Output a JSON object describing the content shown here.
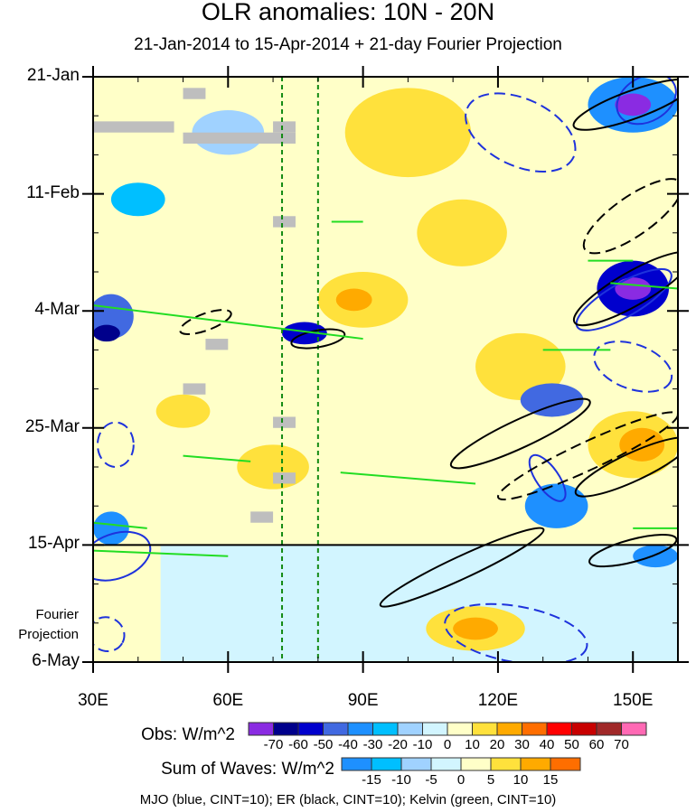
{
  "chart_data": {
    "type": "heatmap",
    "title": "OLR anomalies: 10N - 20N",
    "subtitle": "21-Jan-2014 to 15-Apr-2014 + 21-day Fourier Projection",
    "xlim": [
      30,
      160
    ],
    "ylim_days": [
      0,
      105
    ],
    "x_ticks": [
      {
        "lon": 30,
        "label": "30E"
      },
      {
        "lon": 60,
        "label": "60E"
      },
      {
        "lon": 90,
        "label": "90E"
      },
      {
        "lon": 120,
        "label": "120E"
      },
      {
        "lon": 150,
        "label": "150E"
      }
    ],
    "y_ticks": [
      {
        "day": 0,
        "label": "21-Jan"
      },
      {
        "day": 21,
        "label": "11-Feb"
      },
      {
        "day": 42,
        "label": "4-Mar"
      },
      {
        "day": 63,
        "label": "25-Mar"
      },
      {
        "day": 84,
        "label": "15-Apr"
      },
      {
        "day": 105,
        "label": "6-May"
      }
    ],
    "projection_label": [
      "Fourier",
      "Projection"
    ],
    "observation_end_day": 84,
    "reference_lines_lon": [
      72,
      80
    ],
    "obs_colorbar": {
      "label": "Obs: W/m^2",
      "levels": [
        "-70",
        "-60",
        "-50",
        "-40",
        "-30",
        "-20",
        "-10",
        "0",
        "10",
        "20",
        "30",
        "40",
        "50",
        "60",
        "70"
      ],
      "colors": [
        "#8a2be2",
        "#00008b",
        "#0000cd",
        "#4169e1",
        "#1e90ff",
        "#00bfff",
        "#a0d2ff",
        "#d2f5ff",
        "#ffffc8",
        "#ffe13c",
        "#ffaa00",
        "#ff6e00",
        "#ff0000",
        "#c80000",
        "#a02828",
        "#ff69b4"
      ]
    },
    "wave_colorbar": {
      "label": "Sum of Waves: W/m^2",
      "levels": [
        "-15",
        "-10",
        "-5",
        "0",
        "5",
        "10",
        "15"
      ],
      "colors": [
        "#1e90ff",
        "#00bfff",
        "#a0d2ff",
        "#d2f5ff",
        "#ffffc8",
        "#ffe13c",
        "#ffaa00",
        "#ff6e00"
      ]
    },
    "anomaly_patches": [
      {
        "lon": 100,
        "day": 10,
        "rlon": 14,
        "rday": 8,
        "color": "#ffe13c"
      },
      {
        "lon": 112,
        "day": 28,
        "rlon": 10,
        "rday": 6,
        "color": "#ffe13c"
      },
      {
        "lon": 90,
        "day": 40,
        "rlon": 10,
        "rday": 5,
        "color": "#ffe13c"
      },
      {
        "lon": 88,
        "day": 40,
        "rlon": 4,
        "rday": 2,
        "color": "#ffaa00"
      },
      {
        "lon": 125,
        "day": 52,
        "rlon": 10,
        "rday": 6,
        "color": "#ffe13c"
      },
      {
        "lon": 150,
        "day": 66,
        "rlon": 10,
        "rday": 6,
        "color": "#ffe13c"
      },
      {
        "lon": 152,
        "day": 66,
        "rlon": 5,
        "rday": 3,
        "color": "#ffaa00"
      },
      {
        "lon": 70,
        "day": 70,
        "rlon": 8,
        "rday": 4,
        "color": "#ffe13c"
      },
      {
        "lon": 50,
        "day": 60,
        "rlon": 6,
        "rday": 3,
        "color": "#ffe13c"
      },
      {
        "lon": 115,
        "day": 99,
        "rlon": 11,
        "rday": 4,
        "color": "#ffe13c"
      },
      {
        "lon": 115,
        "day": 99,
        "rlon": 5,
        "rday": 2,
        "color": "#ffaa00"
      },
      {
        "lon": 150,
        "day": 5,
        "rlon": 10,
        "rday": 5,
        "color": "#1e90ff"
      },
      {
        "lon": 150,
        "day": 5,
        "rlon": 4,
        "rday": 2,
        "color": "#8a2be2"
      },
      {
        "lon": 150,
        "day": 38,
        "rlon": 8,
        "rday": 5,
        "color": "#0000cd"
      },
      {
        "lon": 150,
        "day": 38,
        "rlon": 4,
        "rday": 2,
        "color": "#8a2be2"
      },
      {
        "lon": 34,
        "day": 43,
        "rlon": 5,
        "rday": 4,
        "color": "#4169e1"
      },
      {
        "lon": 33,
        "day": 46,
        "rlon": 3,
        "rday": 1.5,
        "color": "#00008b"
      },
      {
        "lon": 77,
        "day": 46,
        "rlon": 5,
        "rday": 2,
        "color": "#0000cd"
      },
      {
        "lon": 132,
        "day": 58,
        "rlon": 7,
        "rday": 3,
        "color": "#4169e1"
      },
      {
        "lon": 133,
        "day": 77,
        "rlon": 7,
        "rday": 4,
        "color": "#1e90ff"
      },
      {
        "lon": 40,
        "day": 22,
        "rlon": 6,
        "rday": 3,
        "color": "#00bfff"
      },
      {
        "lon": 34,
        "day": 81,
        "rlon": 4,
        "rday": 3,
        "color": "#1e90ff"
      },
      {
        "lon": 155,
        "day": 86,
        "rlon": 5,
        "rday": 2,
        "color": "#1e90ff"
      },
      {
        "lon": 60,
        "day": 10,
        "rlon": 8,
        "rday": 4,
        "color": "#a0d2ff"
      }
    ],
    "missing_blocks": [
      {
        "lon": [
          30,
          48
        ],
        "day": [
          8,
          10
        ]
      },
      {
        "lon": [
          50,
          75
        ],
        "day": [
          10,
          12
        ]
      },
      {
        "lon": [
          50,
          55
        ],
        "day": [
          2,
          4
        ]
      },
      {
        "lon": [
          70,
          75
        ],
        "day": [
          8,
          10
        ]
      },
      {
        "lon": [
          70,
          75
        ],
        "day": [
          25,
          27
        ]
      },
      {
        "lon": [
          55,
          60
        ],
        "day": [
          47,
          49
        ]
      },
      {
        "lon": [
          50,
          55
        ],
        "day": [
          55,
          57
        ]
      },
      {
        "lon": [
          70,
          75
        ],
        "day": [
          61,
          63
        ]
      },
      {
        "lon": [
          70,
          75
        ],
        "day": [
          71,
          73
        ]
      },
      {
        "lon": [
          65,
          70
        ],
        "day": [
          78,
          80
        ]
      }
    ],
    "wave_contours": [
      {
        "wave": "MJO",
        "lon": 125,
        "day": 10,
        "rlon": 13,
        "rday": 6,
        "angle": 25,
        "dashed": true
      },
      {
        "wave": "MJO",
        "lon": 153,
        "day": 4,
        "rlon": 7,
        "rday": 4,
        "angle": -30,
        "dashed": false
      },
      {
        "wave": "MJO",
        "lon": 150,
        "day": 52,
        "rlon": 9,
        "rday": 4,
        "angle": 20,
        "dashed": true
      },
      {
        "wave": "MJO",
        "lon": 148,
        "day": 40,
        "rlon": 12,
        "rday": 3,
        "angle": -30,
        "dashed": false
      },
      {
        "wave": "MJO",
        "lon": 131,
        "day": 72,
        "rlon": 6,
        "rday": 2,
        "angle": 55,
        "dashed": false
      },
      {
        "wave": "MJO",
        "lon": 35,
        "day": 66,
        "rlon": 4,
        "rday": 4,
        "angle": 0,
        "dashed": true
      },
      {
        "wave": "MJO",
        "lon": 35,
        "day": 86,
        "rlon": 8,
        "rday": 4,
        "angle": -20,
        "dashed": false
      },
      {
        "wave": "MJO",
        "lon": 33,
        "day": 100,
        "rlon": 4,
        "rday": 3,
        "angle": 30,
        "dashed": true
      },
      {
        "wave": "MJO",
        "lon": 124,
        "day": 100,
        "rlon": 16,
        "rday": 5,
        "angle": 10,
        "dashed": true
      },
      {
        "wave": "ER",
        "lon": 150,
        "day": 5,
        "rlon": 14,
        "rday": 2.5,
        "angle": -20,
        "dashed": false
      },
      {
        "wave": "ER",
        "lon": 150,
        "day": 25,
        "rlon": 13,
        "rday": 3.5,
        "angle": -35,
        "dashed": true
      },
      {
        "wave": "ER",
        "lon": 150,
        "day": 38,
        "rlon": 15,
        "rday": 3,
        "angle": -30,
        "dashed": false
      },
      {
        "wave": "ER",
        "lon": 55,
        "day": 44,
        "rlon": 6,
        "rday": 1.5,
        "angle": -20,
        "dashed": true
      },
      {
        "wave": "ER",
        "lon": 80,
        "day": 47,
        "rlon": 6,
        "rday": 1.5,
        "angle": -10,
        "dashed": false
      },
      {
        "wave": "ER",
        "lon": 125,
        "day": 64,
        "rlon": 17,
        "rday": 2.5,
        "angle": -25,
        "dashed": false
      },
      {
        "wave": "ER",
        "lon": 140,
        "day": 68,
        "rlon": 22,
        "rday": 2.5,
        "angle": -25,
        "dashed": true
      },
      {
        "wave": "ER",
        "lon": 150,
        "day": 70,
        "rlon": 14,
        "rday": 2.5,
        "angle": -25,
        "dashed": false
      },
      {
        "wave": "ER",
        "lon": 112,
        "day": 88,
        "rlon": 20,
        "rday": 2,
        "angle": -25,
        "dashed": false
      },
      {
        "wave": "ER",
        "lon": 150,
        "day": 85,
        "rlon": 10,
        "rday": 2,
        "angle": -15,
        "dashed": false
      }
    ],
    "kelvin_segments": [
      {
        "lon": [
          30,
          90
        ],
        "day": [
          41,
          47
        ]
      },
      {
        "lon": [
          85,
          115
        ],
        "day": [
          71,
          73
        ]
      },
      {
        "lon": [
          50,
          65
        ],
        "day": [
          68,
          69
        ]
      },
      {
        "lon": [
          30,
          60
        ],
        "day": [
          85,
          86
        ]
      },
      {
        "lon": [
          30,
          42
        ],
        "day": [
          80,
          81
        ]
      },
      {
        "lon": [
          145,
          160
        ],
        "day": [
          37,
          38
        ]
      },
      {
        "lon": [
          140,
          150
        ],
        "day": [
          33,
          33
        ]
      },
      {
        "lon": [
          83,
          90
        ],
        "day": [
          26,
          26
        ]
      },
      {
        "lon": [
          130,
          145
        ],
        "day": [
          49,
          49
        ]
      },
      {
        "lon": [
          150,
          160
        ],
        "day": [
          81,
          81
        ]
      }
    ],
    "wave_label": "MJO (blue, CINT=10); ER (black, CINT=10); Kelvin (green, CINT=10)",
    "wave_colors": {
      "MJO": "#1e32dc",
      "ER": "#000000",
      "Kelvin": "#22dd22"
    }
  }
}
